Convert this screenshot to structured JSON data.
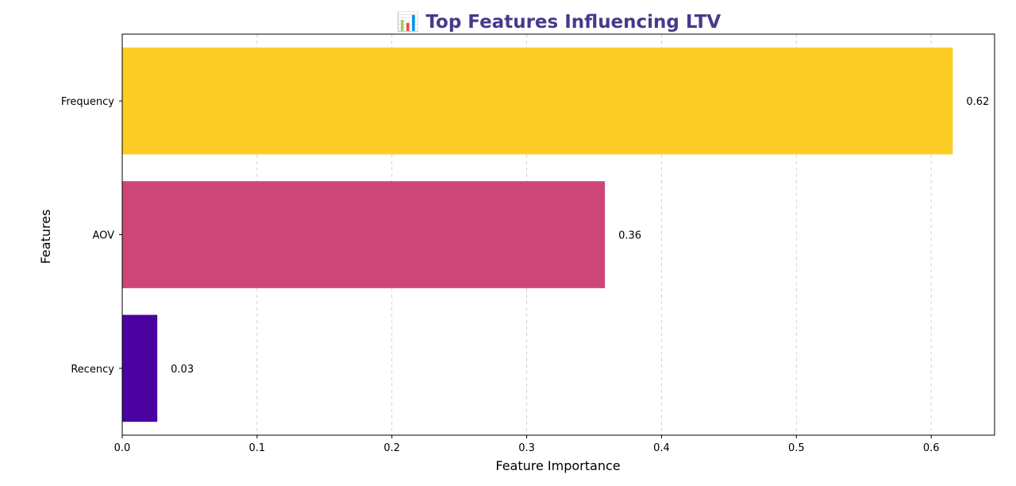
{
  "chart_data": {
    "type": "bar",
    "orientation": "horizontal",
    "title": "📊 Top Features Influencing LTV",
    "title_color": "#463a8c",
    "xlabel": "Feature Importance",
    "ylabel": "Features",
    "xlim": [
      0,
      0.647
    ],
    "xticks": [
      0.0,
      0.1,
      0.2,
      0.3,
      0.4,
      0.5,
      0.6
    ],
    "xtick_labels": [
      "0.0",
      "0.1",
      "0.2",
      "0.3",
      "0.4",
      "0.5",
      "0.6"
    ],
    "grid": "x-dashed",
    "categories": [
      "Frequency",
      "AOV",
      "Recency"
    ],
    "values": [
      0.616,
      0.358,
      0.026
    ],
    "data_labels": [
      "0.62",
      "0.36",
      "0.03"
    ],
    "colors": [
      "#fcce25",
      "#cc4778",
      "#4a02a0"
    ]
  }
}
